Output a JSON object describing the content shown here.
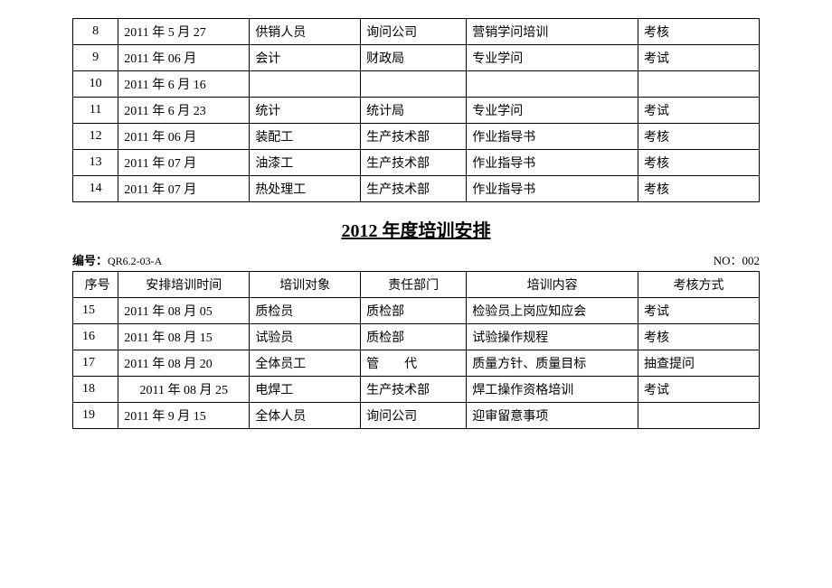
{
  "table1": {
    "rows": [
      {
        "seq": "8",
        "date": "2011 年 5 月 27",
        "target": "供销人员",
        "dept": "询问公司",
        "content": "营销学问培训",
        "method": "考核"
      },
      {
        "seq": "9",
        "date": "2011 年 06 月",
        "target": "会计",
        "dept": "财政局",
        "content": "专业学问",
        "method": "考试"
      },
      {
        "seq": "10",
        "date": "2011 年 6 月 16",
        "target": "",
        "dept": "",
        "content": "",
        "method": ""
      },
      {
        "seq": "11",
        "date": "2011 年 6 月 23",
        "target": "统计",
        "dept": "统计局",
        "content": "专业学问",
        "method": "考试"
      },
      {
        "seq": "12",
        "date": "2011 年 06 月",
        "target": "装配工",
        "dept": "生产技术部",
        "content": "作业指导书",
        "method": "考核"
      },
      {
        "seq": "13",
        "date": "2011 年 07 月",
        "target": "油漆工",
        "dept": "生产技术部",
        "content": "作业指导书",
        "method": "考核"
      },
      {
        "seq": "14",
        "date": "2011 年 07 月",
        "target": "热处理工",
        "dept": "生产技术部",
        "content": "作业指导书",
        "method": "考核"
      }
    ]
  },
  "title": "2012 年度培训安排",
  "code_label": "编号：",
  "code_value": "QR6.2-03-A",
  "no_label": "NO：",
  "no_value": "002",
  "table2": {
    "headers": {
      "seq": "序号",
      "date": "安排培训时间",
      "target": "培训对象",
      "dept": "责任部门",
      "content": "培训内容",
      "method": "考核方式"
    },
    "rows": [
      {
        "seq": "15",
        "date": "2011 年 08 月 05",
        "target": "质检员",
        "dept": "质检部",
        "content": "检验员上岗应知应会",
        "method": "考试"
      },
      {
        "seq": "16",
        "date": "2011 年 08 月 15",
        "target": "试验员",
        "dept": "质检部",
        "content": "试验操作规程",
        "method": "考核"
      },
      {
        "seq": "17",
        "date": "2011 年 08 月 20",
        "target": "全体员工",
        "dept": "管　　代",
        "content": "质量方针、质量目标",
        "method": "抽查提问"
      },
      {
        "seq": "18",
        "date": "2011 年 08 月 25",
        "target": "电焊工",
        "dept": "生产技术部",
        "content": "焊工操作资格培训",
        "method": "考试"
      },
      {
        "seq": "19",
        "date": "2011 年 9 月 15",
        "target": "全体人员",
        "dept": "询问公司",
        "content": "迎审留意事项",
        "method": ""
      }
    ]
  }
}
